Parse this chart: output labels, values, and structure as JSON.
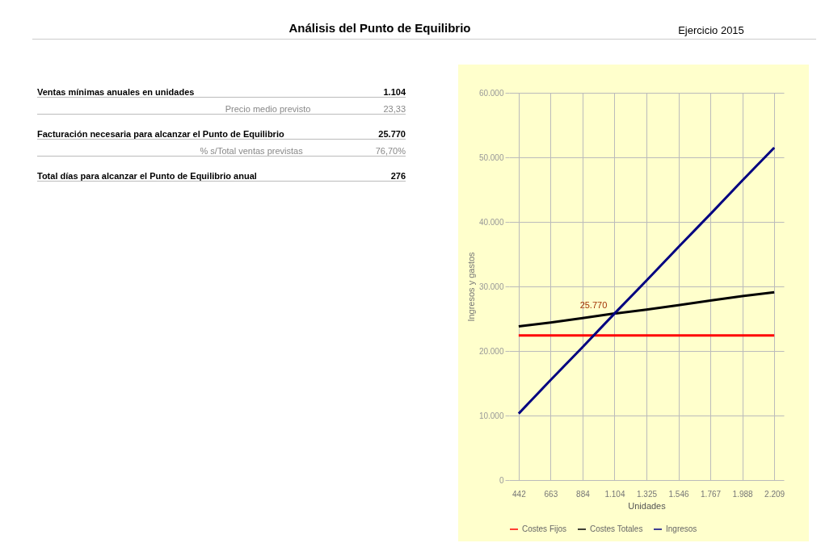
{
  "chart_data": {
    "type": "line",
    "title": "Análisis del Punto de Equilibrio",
    "subtitle": "Ejercicio 2015",
    "xlabel": "Unidades",
    "ylabel": "Ingresos y gastos",
    "categories": [
      "442",
      "663",
      "884",
      "1.104",
      "1.325",
      "1.546",
      "1.767",
      "1.988",
      "2.209"
    ],
    "series": [
      {
        "name": "Costes Fijos",
        "color": "#ff0000",
        "values": [
          22400,
          22400,
          22400,
          22400,
          22400,
          22400,
          22400,
          22400,
          22400
        ]
      },
      {
        "name": "Costes Totales",
        "color": "#000000",
        "values": [
          23800,
          24400,
          25100,
          25800,
          26400,
          27100,
          27800,
          28500,
          29100
        ]
      },
      {
        "name": "Ingresos",
        "color": "#000080",
        "values": [
          10300,
          15500,
          20600,
          25800,
          30900,
          36100,
          41200,
          46400,
          51500
        ]
      }
    ],
    "ylim": [
      0,
      60000
    ],
    "yticks": [
      {
        "value": 0,
        "label": "0"
      },
      {
        "value": 10000,
        "label": "10.000"
      },
      {
        "value": 20000,
        "label": "20.000"
      },
      {
        "value": 30000,
        "label": "30.000"
      },
      {
        "value": 40000,
        "label": "40.000"
      },
      {
        "value": 50000,
        "label": "50.000"
      },
      {
        "value": 60000,
        "label": "60.000"
      }
    ],
    "grid": true,
    "legend": "bottom",
    "marker": "none",
    "line_style": "solid",
    "annotations": [
      "Ventas mínimas anuales en unidades",
      "1.104",
      "Precio medio previsto",
      "23,33",
      "Facturación necesaria para alcanzar el Punto de Equilibrio",
      "25.770",
      "% s/Total ventas previstas",
      "76,70%",
      "Total días para alcanzar el Punto de Equilibrio anual",
      "276",
      {
        "text": "25.770",
        "x": "1.104",
        "y": 25770
      }
    ]
  }
}
